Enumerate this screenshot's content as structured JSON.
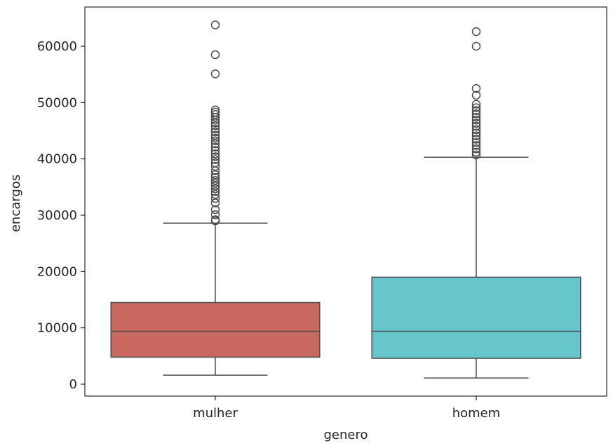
{
  "chart_data": {
    "type": "box",
    "xlabel": "genero",
    "ylabel": "encargos",
    "ylim": [
      -2000,
      67000
    ],
    "yticks": [
      0,
      10000,
      20000,
      30000,
      40000,
      50000,
      60000
    ],
    "ytick_labels": [
      "0",
      "10000",
      "20000",
      "30000",
      "40000",
      "50000",
      "60000"
    ],
    "grid": false,
    "categories": [
      "mulher",
      "homem"
    ],
    "boxes": [
      {
        "category": "mulher",
        "color": "#C9685F",
        "whisker_low": 1600,
        "q1": 4800,
        "median": 9400,
        "q3": 14500,
        "whisker_high": 28600,
        "outliers": [
          29000,
          29200,
          30100,
          31000,
          32200,
          33000,
          33700,
          34200,
          34700,
          35200,
          35700,
          36200,
          36700,
          37200,
          37900,
          38700,
          39300,
          39900,
          40400,
          40900,
          41500,
          42100,
          42700,
          43200,
          43700,
          44200,
          44800,
          45300,
          45900,
          46400,
          46900,
          47400,
          47900,
          48300,
          48700,
          55100,
          58500,
          63800
        ]
      },
      {
        "category": "homem",
        "color": "#67C5CC",
        "whisker_low": 1100,
        "q1": 4600,
        "median": 9400,
        "q3": 19000,
        "whisker_high": 40300,
        "outliers": [
          40700,
          41200,
          41800,
          42400,
          42900,
          43500,
          44100,
          44600,
          45200,
          45800,
          46300,
          46900,
          47400,
          48000,
          48600,
          49100,
          49700,
          51300,
          52500,
          60000,
          62600
        ]
      }
    ]
  }
}
